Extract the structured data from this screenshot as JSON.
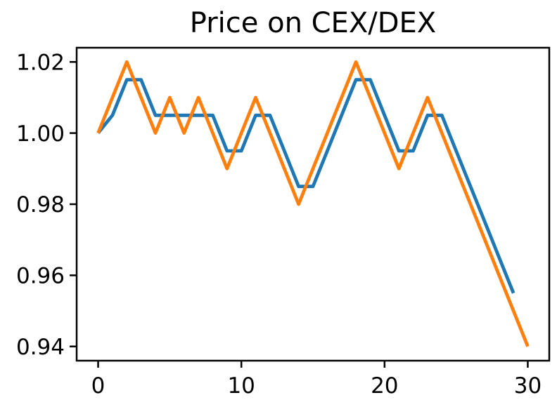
{
  "figure": {
    "title": "Price on CEX/DEX"
  },
  "chart_data": {
    "type": "line",
    "title": "Price on CEX/DEX",
    "xlabel": "",
    "ylabel": "",
    "xlim": [
      -1.5,
      31.5
    ],
    "ylim": [
      0.936,
      1.024
    ],
    "grid": false,
    "legend": false,
    "background_color": "#ffffff",
    "axis_color": "#000000",
    "xticks": [
      {
        "value": 0,
        "label": "0"
      },
      {
        "value": 10,
        "label": "10"
      },
      {
        "value": 20,
        "label": "20"
      },
      {
        "value": 30,
        "label": "30"
      }
    ],
    "yticks": [
      {
        "value": 1.02,
        "label": "1.02"
      },
      {
        "value": 1.0,
        "label": "1.00"
      },
      {
        "value": 0.98,
        "label": "0.98"
      },
      {
        "value": 0.96,
        "label": "0.96"
      },
      {
        "value": 0.94,
        "label": "0.94"
      }
    ],
    "series": [
      {
        "name": "blue-line",
        "color": "#1f77b4",
        "x": [
          0,
          1,
          2,
          3,
          4,
          5,
          6,
          7,
          8,
          9,
          10,
          11,
          12,
          13,
          14,
          15,
          16,
          17,
          18,
          19,
          20,
          21,
          22,
          23,
          24,
          25,
          26,
          27,
          28,
          29
        ],
        "values": [
          1.0,
          1.005,
          1.015,
          1.015,
          1.005,
          1.005,
          1.005,
          1.005,
          1.005,
          0.995,
          0.995,
          1.005,
          1.005,
          0.995,
          0.985,
          0.985,
          0.995,
          1.005,
          1.015,
          1.015,
          1.005,
          0.995,
          0.995,
          1.005,
          1.005,
          0.995,
          0.985,
          0.975,
          0.965,
          0.955
        ]
      },
      {
        "name": "orange-line",
        "color": "#ff7f0e",
        "x": [
          0,
          1,
          2,
          3,
          4,
          5,
          6,
          7,
          8,
          9,
          10,
          11,
          12,
          13,
          14,
          15,
          16,
          17,
          18,
          19,
          20,
          21,
          22,
          23,
          24,
          25,
          26,
          27,
          28,
          29,
          30
        ],
        "values": [
          1.0,
          1.01,
          1.02,
          1.01,
          1.0,
          1.01,
          1.0,
          1.01,
          1.0,
          0.99,
          1.0,
          1.01,
          1.0,
          0.99,
          0.98,
          0.99,
          1.0,
          1.01,
          1.02,
          1.01,
          1.0,
          0.99,
          1.0,
          1.01,
          1.0,
          0.99,
          0.98,
          0.97,
          0.96,
          0.95,
          0.94
        ]
      }
    ]
  }
}
